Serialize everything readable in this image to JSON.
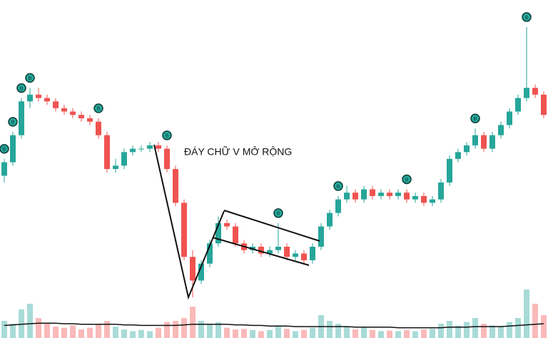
{
  "chart_data": {
    "type": "candlestick",
    "title": "ĐÁY CHỮ V MỞ RỘNG",
    "ylim": [
      0,
      100
    ],
    "volume_lim": [
      0,
      100
    ],
    "up_color": "#26a69a",
    "down_color": "#ef5350",
    "volume_ma_color": "#111111",
    "candles": [
      [
        48,
        53,
        46,
        52
      ],
      [
        52,
        61,
        51,
        60
      ],
      [
        60,
        71,
        59,
        70
      ],
      [
        70,
        74,
        68,
        72
      ],
      [
        72,
        74,
        70,
        71
      ],
      [
        71,
        72,
        69,
        70
      ],
      [
        70,
        71,
        67,
        68
      ],
      [
        68,
        69,
        66,
        67
      ],
      [
        67,
        68,
        65,
        66
      ],
      [
        66,
        67,
        64,
        65
      ],
      [
        65,
        66,
        63,
        64
      ],
      [
        64,
        65,
        59,
        60
      ],
      [
        60,
        61,
        49,
        50
      ],
      [
        50,
        53,
        49,
        51
      ],
      [
        51,
        56,
        50,
        55
      ],
      [
        55,
        57,
        54,
        56
      ],
      [
        56,
        57,
        55,
        56
      ],
      [
        56,
        58,
        55,
        57
      ],
      [
        57,
        58,
        55,
        56
      ],
      [
        56,
        57,
        49,
        50
      ],
      [
        50,
        51,
        39,
        40
      ],
      [
        40,
        41,
        23,
        24
      ],
      [
        24,
        26,
        12,
        17
      ],
      [
        17,
        23,
        16,
        22
      ],
      [
        22,
        29,
        21,
        28
      ],
      [
        28,
        36,
        27,
        34
      ],
      [
        34,
        35,
        32,
        33
      ],
      [
        33,
        34,
        27,
        28
      ],
      [
        28,
        29,
        25,
        26
      ],
      [
        26,
        28,
        25,
        27
      ],
      [
        27,
        28,
        24,
        25
      ],
      [
        25,
        27,
        24,
        26
      ],
      [
        26,
        34,
        25,
        27
      ],
      [
        27,
        28,
        23,
        24
      ],
      [
        24,
        26,
        23,
        25
      ],
      [
        25,
        26,
        22,
        23
      ],
      [
        23,
        28,
        22,
        27
      ],
      [
        27,
        34,
        26,
        33
      ],
      [
        33,
        38,
        32,
        37
      ],
      [
        37,
        42,
        36,
        41
      ],
      [
        41,
        45,
        40,
        43
      ],
      [
        43,
        44,
        40,
        41
      ],
      [
        41,
        45,
        40,
        44
      ],
      [
        44,
        45,
        41,
        42
      ],
      [
        42,
        44,
        41,
        43
      ],
      [
        43,
        44,
        41,
        42
      ],
      [
        42,
        44,
        41,
        43
      ],
      [
        43,
        44,
        40,
        41
      ],
      [
        41,
        43,
        40,
        42
      ],
      [
        42,
        43,
        39,
        40
      ],
      [
        40,
        42,
        39,
        41
      ],
      [
        41,
        47,
        40,
        46
      ],
      [
        46,
        54,
        45,
        53
      ],
      [
        53,
        56,
        52,
        55
      ],
      [
        55,
        58,
        54,
        57
      ],
      [
        57,
        62,
        56,
        60
      ],
      [
        60,
        61,
        55,
        56
      ],
      [
        56,
        61,
        55,
        60
      ],
      [
        60,
        64,
        59,
        63
      ],
      [
        63,
        68,
        62,
        67
      ],
      [
        67,
        72,
        66,
        71
      ],
      [
        71,
        92,
        70,
        74
      ],
      [
        74,
        75,
        71,
        72
      ],
      [
        72,
        73,
        65,
        66
      ]
    ],
    "volumes": [
      30,
      25,
      50,
      60,
      35,
      25,
      20,
      18,
      22,
      15,
      18,
      25,
      30,
      20,
      15,
      12,
      14,
      12,
      18,
      28,
      30,
      35,
      55,
      30,
      25,
      28,
      18,
      15,
      16,
      14,
      12,
      14,
      20,
      16,
      12,
      14,
      18,
      40,
      30,
      25,
      20,
      15,
      18,
      14,
      12,
      13,
      12,
      14,
      12,
      15,
      16,
      25,
      30,
      22,
      28,
      35,
      25,
      22,
      20,
      28,
      35,
      85,
      60,
      40
    ],
    "volume_ma": [
      22,
      23,
      24,
      25,
      26,
      26,
      26,
      25,
      25,
      24,
      24,
      24,
      24,
      24,
      23,
      23,
      22,
      22,
      22,
      22,
      22,
      23,
      24,
      24,
      24,
      24,
      24,
      23,
      23,
      22,
      22,
      21,
      21,
      21,
      20,
      20,
      20,
      20,
      20,
      20,
      20,
      19,
      19,
      19,
      19,
      19,
      18,
      18,
      18,
      18,
      18,
      18,
      19,
      19,
      19,
      20,
      20,
      20,
      20,
      21,
      22,
      23,
      24,
      25
    ],
    "markers": [
      {
        "index": 0,
        "label": "B"
      },
      {
        "index": 1,
        "label": "B"
      },
      {
        "index": 2,
        "label": "B"
      },
      {
        "index": 3,
        "label": "B"
      },
      {
        "index": 11,
        "label": "B"
      },
      {
        "index": 19,
        "label": "B"
      },
      {
        "index": 32,
        "label": "B"
      },
      {
        "index": 39,
        "label": "B"
      },
      {
        "index": 47,
        "label": "B"
      },
      {
        "index": 55,
        "label": "B"
      },
      {
        "index": 61,
        "label": "B"
      }
    ]
  }
}
